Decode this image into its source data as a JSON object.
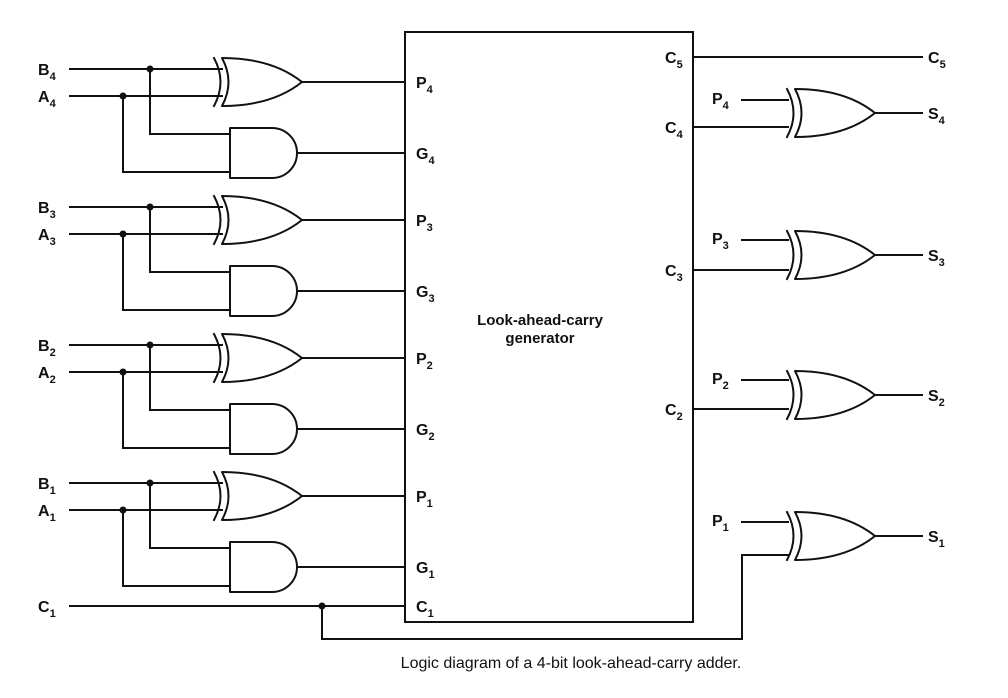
{
  "diagram": {
    "box": {
      "title_line1": "Look-ahead-carry",
      "title_line2": "generator"
    },
    "caption": "Logic diagram of a 4-bit look-ahead-carry adder.",
    "inputs": [
      {
        "b": "B",
        "a": "A",
        "p": "P",
        "g": "G",
        "sub": "4"
      },
      {
        "b": "B",
        "a": "A",
        "p": "P",
        "g": "G",
        "sub": "3"
      },
      {
        "b": "B",
        "a": "A",
        "p": "P",
        "g": "G",
        "sub": "2"
      },
      {
        "b": "B",
        "a": "A",
        "p": "P",
        "g": "G",
        "sub": "1"
      }
    ],
    "carry_in": {
      "letter": "C",
      "sub": "1"
    },
    "carry_outs": [
      {
        "letter": "C",
        "sub": "5"
      },
      {
        "letter": "C",
        "sub": "4"
      },
      {
        "letter": "C",
        "sub": "3"
      },
      {
        "letter": "C",
        "sub": "2"
      }
    ],
    "sums": [
      {
        "p": "P",
        "s": "S",
        "sub": "4"
      },
      {
        "p": "P",
        "s": "S",
        "sub": "3"
      },
      {
        "p": "P",
        "s": "S",
        "sub": "2"
      },
      {
        "p": "P",
        "s": "S",
        "sub": "1"
      }
    ]
  }
}
